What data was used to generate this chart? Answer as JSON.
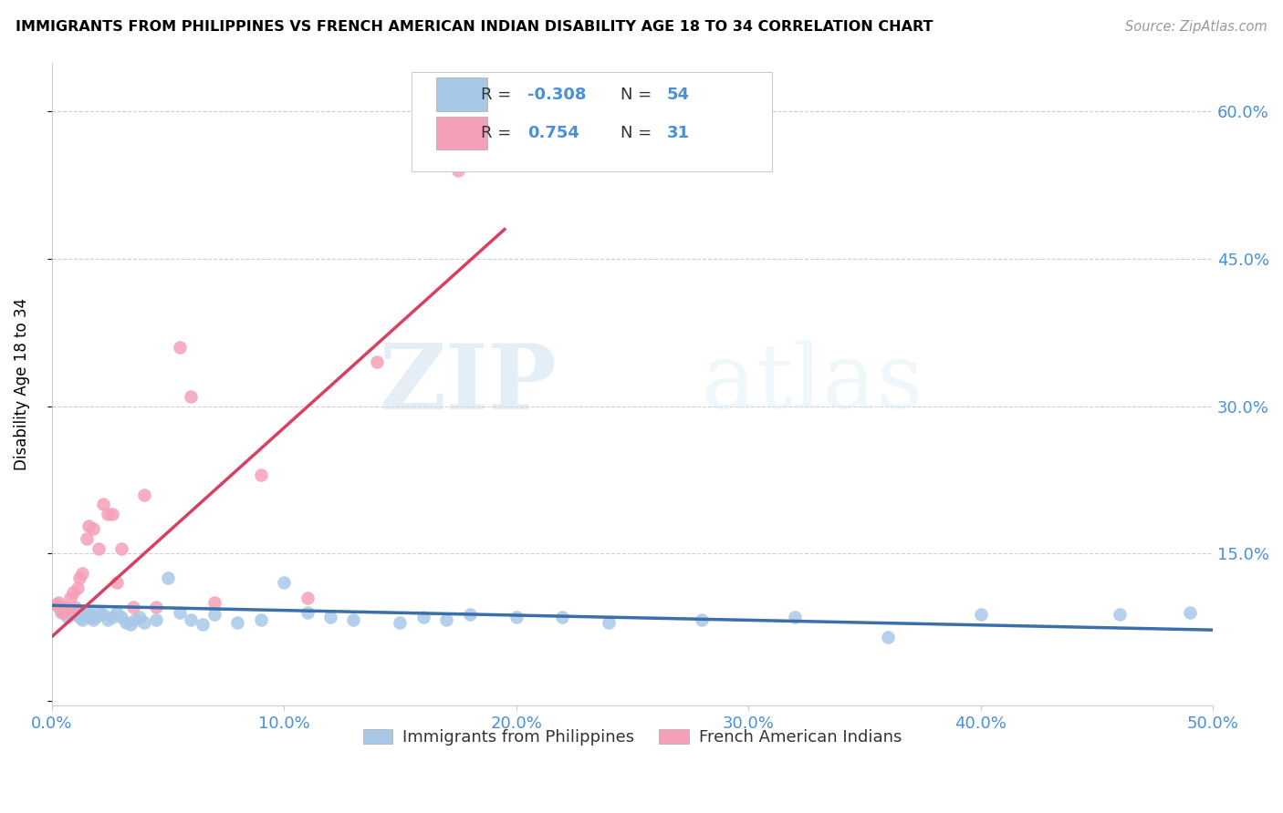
{
  "title": "IMMIGRANTS FROM PHILIPPINES VS FRENCH AMERICAN INDIAN DISABILITY AGE 18 TO 34 CORRELATION CHART",
  "source": "Source: ZipAtlas.com",
  "ylabel": "Disability Age 18 to 34",
  "xlim": [
    0.0,
    0.5
  ],
  "ylim": [
    -0.005,
    0.65
  ],
  "xticks": [
    0.0,
    0.1,
    0.2,
    0.3,
    0.4,
    0.5
  ],
  "xtick_labels": [
    "0.0%",
    "10.0%",
    "20.0%",
    "30.0%",
    "40.0%",
    "50.0%"
  ],
  "yticks": [
    0.0,
    0.15,
    0.3,
    0.45,
    0.6
  ],
  "ytick_labels_right": [
    "",
    "15.0%",
    "30.0%",
    "45.0%",
    "60.0%"
  ],
  "legend_blue_R": "-0.308",
  "legend_blue_N": "54",
  "legend_pink_R": "0.754",
  "legend_pink_N": "31",
  "blue_color": "#a8c8e8",
  "pink_color": "#f4a0b8",
  "blue_line_color": "#3a6faa",
  "pink_line_color": "#d94060",
  "watermark_zip": "ZIP",
  "watermark_atlas": "atlas",
  "blue_scatter_x": [
    0.002,
    0.003,
    0.004,
    0.005,
    0.006,
    0.007,
    0.008,
    0.009,
    0.01,
    0.011,
    0.012,
    0.013,
    0.014,
    0.015,
    0.016,
    0.017,
    0.018,
    0.019,
    0.02,
    0.022,
    0.024,
    0.026,
    0.028,
    0.03,
    0.032,
    0.034,
    0.036,
    0.038,
    0.04,
    0.045,
    0.05,
    0.055,
    0.06,
    0.065,
    0.07,
    0.08,
    0.09,
    0.1,
    0.11,
    0.12,
    0.13,
    0.15,
    0.16,
    0.17,
    0.18,
    0.2,
    0.22,
    0.24,
    0.28,
    0.32,
    0.36,
    0.4,
    0.46,
    0.49
  ],
  "blue_scatter_y": [
    0.098,
    0.095,
    0.09,
    0.092,
    0.088,
    0.085,
    0.09,
    0.092,
    0.088,
    0.09,
    0.085,
    0.082,
    0.088,
    0.09,
    0.085,
    0.088,
    0.082,
    0.085,
    0.09,
    0.088,
    0.082,
    0.085,
    0.09,
    0.085,
    0.08,
    0.078,
    0.082,
    0.085,
    0.08,
    0.082,
    0.125,
    0.09,
    0.082,
    0.078,
    0.088,
    0.08,
    0.082,
    0.12,
    0.09,
    0.085,
    0.082,
    0.08,
    0.085,
    0.082,
    0.088,
    0.085,
    0.085,
    0.08,
    0.082,
    0.085,
    0.065,
    0.088,
    0.088,
    0.09
  ],
  "pink_scatter_x": [
    0.002,
    0.003,
    0.004,
    0.005,
    0.006,
    0.007,
    0.008,
    0.009,
    0.01,
    0.011,
    0.012,
    0.013,
    0.015,
    0.016,
    0.018,
    0.02,
    0.022,
    0.024,
    0.026,
    0.028,
    0.03,
    0.035,
    0.04,
    0.045,
    0.055,
    0.06,
    0.07,
    0.09,
    0.11,
    0.14,
    0.175
  ],
  "pink_scatter_y": [
    0.098,
    0.1,
    0.092,
    0.09,
    0.095,
    0.092,
    0.105,
    0.11,
    0.095,
    0.115,
    0.125,
    0.13,
    0.165,
    0.178,
    0.175,
    0.155,
    0.2,
    0.19,
    0.19,
    0.12,
    0.155,
    0.095,
    0.21,
    0.095,
    0.36,
    0.31,
    0.1,
    0.23,
    0.105,
    0.345,
    0.54
  ],
  "blue_line_x_start": 0.0,
  "blue_line_x_end": 0.5,
  "blue_line_y_start": 0.097,
  "blue_line_y_end": 0.072,
  "pink_line_x_start": 0.0,
  "pink_line_x_end": 0.195,
  "pink_line_y_start": 0.065,
  "pink_line_y_end": 0.48
}
